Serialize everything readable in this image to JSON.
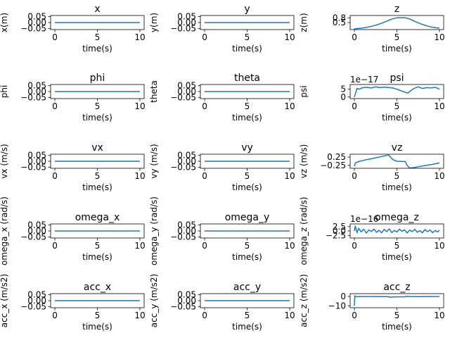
{
  "chart_data": [
    {
      "type": "line",
      "title": "x",
      "xlabel": "time(s)",
      "ylabel": "x(m)",
      "xlim": [
        -0.5,
        10.5
      ],
      "ylim": [
        -0.06,
        0.06
      ],
      "xticks": [
        0,
        5,
        10
      ],
      "xtick_labels": [
        "0",
        "5",
        "10"
      ],
      "yticks": [
        0.05,
        0,
        -0.05
      ],
      "ytick_labels": [
        "0.05",
        "0.00",
        "−0.05"
      ],
      "x": [
        0,
        10
      ],
      "y": [
        0,
        0
      ],
      "color": "#1f77b4"
    },
    {
      "type": "line",
      "title": "y",
      "xlabel": "time(s)",
      "ylabel": "y(m)",
      "xlim": [
        -0.5,
        10.5
      ],
      "ylim": [
        -0.06,
        0.06
      ],
      "xticks": [
        0,
        5,
        10
      ],
      "xtick_labels": [
        "0",
        "5",
        "10"
      ],
      "yticks": [
        0.05,
        0,
        -0.05
      ],
      "ytick_labels": [
        "0.05",
        "0.00",
        "−0.05"
      ],
      "x": [
        0,
        10
      ],
      "y": [
        0,
        0
      ],
      "color": "#1f77b4"
    },
    {
      "type": "line",
      "title": "z",
      "xlabel": "time(s)",
      "ylabel": "z(m)",
      "xlim": [
        -0.5,
        10.5
      ],
      "ylim": [
        0.05,
        0.95
      ],
      "xticks": [
        0,
        5,
        10
      ],
      "xtick_labels": [
        "0",
        "5",
        "10"
      ],
      "yticks": [
        0.5,
        0.8
      ],
      "ytick_labels": [
        "0.5",
        "0.8"
      ],
      "x": [
        0,
        0.5,
        1,
        1.5,
        2,
        2.5,
        3,
        3.5,
        4,
        4.5,
        5,
        5.5,
        6,
        6.5,
        7,
        7.5,
        8,
        8.5,
        9,
        9.5,
        10
      ],
      "y": [
        0.1,
        0.12,
        0.15,
        0.2,
        0.26,
        0.33,
        0.42,
        0.52,
        0.63,
        0.74,
        0.8,
        0.8,
        0.8,
        0.73,
        0.6,
        0.48,
        0.38,
        0.29,
        0.22,
        0.17,
        0.14
      ],
      "color": "#1f77b4"
    },
    {
      "type": "line",
      "title": "phi",
      "xlabel": "time(s)",
      "ylabel": "phi",
      "xlim": [
        -0.5,
        10.5
      ],
      "ylim": [
        -0.06,
        0.06
      ],
      "xticks": [
        0,
        5,
        10
      ],
      "xtick_labels": [
        "0",
        "5",
        "10"
      ],
      "yticks": [
        0.05,
        0,
        -0.05
      ],
      "ytick_labels": [
        "0.05",
        "0.00",
        "−0.05"
      ],
      "x": [
        0,
        10
      ],
      "y": [
        0,
        0
      ],
      "color": "#1f77b4"
    },
    {
      "type": "line",
      "title": "theta",
      "xlabel": "time(s)",
      "ylabel": "theta",
      "xlim": [
        -0.5,
        10.5
      ],
      "ylim": [
        -0.06,
        0.06
      ],
      "xticks": [
        0,
        5,
        10
      ],
      "xtick_labels": [
        "0",
        "5",
        "10"
      ],
      "yticks": [
        0.05,
        0,
        -0.05
      ],
      "ytick_labels": [
        "0.05",
        "0.00",
        "−0.05"
      ],
      "x": [
        0,
        10
      ],
      "y": [
        0,
        0
      ],
      "color": "#1f77b4"
    },
    {
      "type": "line",
      "title": "psi",
      "xlabel": "time(s)",
      "ylabel": "psi",
      "offset_text": "1e−17",
      "xlim": [
        -0.5,
        10.5
      ],
      "ylim": [
        -1,
        8
      ],
      "xticks": [
        0,
        5,
        10
      ],
      "xtick_labels": [
        "0",
        "5",
        "10"
      ],
      "yticks": [
        5,
        0
      ],
      "ytick_labels": [
        "5",
        "0"
      ],
      "x": [
        0,
        0.3,
        0.6,
        1,
        1.5,
        2,
        2.5,
        3,
        3.5,
        4,
        4.5,
        5,
        5.5,
        6,
        6.3,
        6.6,
        7,
        7.5,
        8,
        8.5,
        9,
        9.5,
        10
      ],
      "y": [
        0,
        5.5,
        5,
        6,
        6.2,
        5.8,
        6.5,
        6,
        6.3,
        6.1,
        5.8,
        5,
        4,
        3,
        2.5,
        4,
        5.5,
        6.5,
        5.5,
        6,
        5.8,
        6.2,
        5
      ],
      "color": "#1f77b4"
    },
    {
      "type": "line",
      "title": "vx",
      "xlabel": "time(s)",
      "ylabel": "vx (m/s)",
      "xlim": [
        -0.5,
        10.5
      ],
      "ylim": [
        -0.06,
        0.06
      ],
      "xticks": [
        0,
        5,
        10
      ],
      "xtick_labels": [
        "0",
        "5",
        "10"
      ],
      "yticks": [
        0.05,
        0,
        -0.05
      ],
      "ytick_labels": [
        "0.05",
        "0.00",
        "−0.05"
      ],
      "x": [
        0,
        10
      ],
      "y": [
        0,
        0
      ],
      "color": "#1f77b4"
    },
    {
      "type": "line",
      "title": "vy",
      "xlabel": "time(s)",
      "ylabel": "vy (m/s)",
      "xlim": [
        -0.5,
        10.5
      ],
      "ylim": [
        -0.06,
        0.06
      ],
      "xticks": [
        0,
        5,
        10
      ],
      "xtick_labels": [
        "0",
        "5",
        "10"
      ],
      "yticks": [
        0.05,
        0,
        -0.05
      ],
      "ytick_labels": [
        "0.05",
        "0.00",
        "−0.05"
      ],
      "x": [
        0,
        10
      ],
      "y": [
        0,
        0
      ],
      "color": "#1f77b4"
    },
    {
      "type": "line",
      "title": "vz",
      "xlabel": "time(s)",
      "ylabel": "vz (m/s)",
      "xlim": [
        -0.5,
        10.5
      ],
      "ylim": [
        -0.42,
        0.42
      ],
      "xticks": [
        0,
        5,
        10
      ],
      "xtick_labels": [
        "0",
        "5",
        "10"
      ],
      "yticks": [
        0.25,
        -0.25
      ],
      "ytick_labels": [
        "0.25",
        "−0.25"
      ],
      "x": [
        0,
        0.1,
        0.5,
        1,
        2,
        3,
        4,
        4.2,
        4.5,
        5,
        6,
        6.2,
        6.5,
        7,
        8,
        9,
        10
      ],
      "y": [
        -0.3,
        -0.1,
        -0.02,
        0.05,
        0.15,
        0.26,
        0.37,
        0.28,
        0.1,
        0.0,
        -0.02,
        -0.25,
        -0.4,
        -0.38,
        -0.28,
        -0.2,
        -0.1
      ],
      "color": "#1f77b4"
    },
    {
      "type": "line",
      "title": "omega_x",
      "xlabel": "time(s)",
      "ylabel": "omega_x (rad/s)",
      "xlim": [
        -0.5,
        10.5
      ],
      "ylim": [
        -0.06,
        0.06
      ],
      "xticks": [
        0,
        5,
        10
      ],
      "xtick_labels": [
        "0",
        "5",
        "10"
      ],
      "yticks": [
        0.05,
        0,
        -0.05
      ],
      "ytick_labels": [
        "0.05",
        "0.00",
        "−0.05"
      ],
      "x": [
        0,
        10
      ],
      "y": [
        0,
        0
      ],
      "color": "#1f77b4"
    },
    {
      "type": "line",
      "title": "omega_y",
      "xlabel": "time(s)",
      "ylabel": "omega_y (rad/s)",
      "xlim": [
        -0.5,
        10.5
      ],
      "ylim": [
        -0.06,
        0.06
      ],
      "xticks": [
        0,
        5,
        10
      ],
      "xtick_labels": [
        "0",
        "5",
        "10"
      ],
      "yticks": [
        0.05,
        0,
        -0.05
      ],
      "ytick_labels": [
        "0.05",
        "0.00",
        "−0.05"
      ],
      "x": [
        0,
        10
      ],
      "y": [
        0,
        0
      ],
      "color": "#1f77b4"
    },
    {
      "type": "line",
      "title": "omega_z",
      "xlabel": "time(s)",
      "ylabel": "omega_z (rad/s)",
      "offset_text": "1e−16",
      "xlim": [
        -0.5,
        10.5
      ],
      "ylim": [
        -4,
        4
      ],
      "xticks": [
        0,
        5,
        10
      ],
      "xtick_labels": [
        "0",
        "5",
        "10"
      ],
      "yticks": [
        2.5,
        0,
        -2.5
      ],
      "ytick_labels": [
        "2.5",
        "0.0",
        "−2.5"
      ],
      "x": [
        0,
        0.1,
        0.3,
        0.5,
        0.8,
        1.1,
        1.4,
        1.7,
        2,
        2.3,
        2.6,
        2.9,
        3.2,
        3.5,
        3.8,
        4.1,
        4.4,
        4.7,
        5,
        5.3,
        5.6,
        5.9,
        6.2,
        6.5,
        6.8,
        7.1,
        7.4,
        7.7,
        8,
        8.3,
        8.6,
        8.9,
        9.2,
        9.5,
        9.8,
        10
      ],
      "y": [
        0,
        2.8,
        -1,
        1.5,
        -0.5,
        1,
        -1.2,
        0.6,
        -0.3,
        1.1,
        -0.8,
        0.4,
        -1,
        0.9,
        -0.4,
        1.2,
        -0.9,
        0.3,
        -0.6,
        1,
        -0.2,
        0.7,
        -1.1,
        0.5,
        -0.3,
        0.9,
        -0.7,
        0.2,
        -1,
        0.8,
        -0.4,
        0.6,
        -0.9,
        0.3,
        -0.5,
        0.4
      ],
      "color": "#1f77b4"
    },
    {
      "type": "line",
      "title": "acc_x",
      "xlabel": "time(s)",
      "ylabel": "acc_x (m/s2)",
      "xlim": [
        -0.5,
        10.5
      ],
      "ylim": [
        -0.06,
        0.06
      ],
      "xticks": [
        0,
        5,
        10
      ],
      "xtick_labels": [
        "0",
        "5",
        "10"
      ],
      "yticks": [
        0.05,
        0,
        -0.05
      ],
      "ytick_labels": [
        "0.05",
        "0.00",
        "−0.05"
      ],
      "x": [
        0,
        10
      ],
      "y": [
        0,
        0
      ],
      "color": "#1f77b4"
    },
    {
      "type": "line",
      "title": "acc_y",
      "xlabel": "time(s)",
      "ylabel": "acc_y (m/s2)",
      "xlim": [
        -0.5,
        10.5
      ],
      "ylim": [
        -0.06,
        0.06
      ],
      "xticks": [
        0,
        5,
        10
      ],
      "xtick_labels": [
        "0",
        "5",
        "10"
      ],
      "yticks": [
        0.05,
        0,
        -0.05
      ],
      "ytick_labels": [
        "0.05",
        "0.00",
        "−0.05"
      ],
      "x": [
        0,
        10
      ],
      "y": [
        0,
        0
      ],
      "color": "#1f77b4"
    },
    {
      "type": "line",
      "title": "acc_z",
      "xlabel": "time(s)",
      "ylabel": "acc_z (m/s2)",
      "xlim": [
        -0.5,
        10.5
      ],
      "ylim": [
        -12,
        3
      ],
      "xticks": [
        0,
        5,
        10
      ],
      "xtick_labels": [
        "0",
        "5",
        "10"
      ],
      "yticks": [
        0,
        -10
      ],
      "ytick_labels": [
        "0",
        "−10"
      ],
      "x": [
        0,
        0.05,
        0.1,
        0.2,
        0.4,
        1,
        2,
        3,
        4,
        4.1,
        4.5,
        5,
        6,
        6.1,
        6.5,
        7,
        8,
        9,
        10
      ],
      "y": [
        -10,
        0.8,
        0.2,
        -0.3,
        -0.2,
        -0.1,
        -0.1,
        -0.2,
        -0.2,
        -0.8,
        -0.5,
        -0.4,
        -0.4,
        0.2,
        -0.1,
        -0.2,
        -0.2,
        -0.1,
        -0.1
      ],
      "color": "#1f77b4"
    }
  ]
}
